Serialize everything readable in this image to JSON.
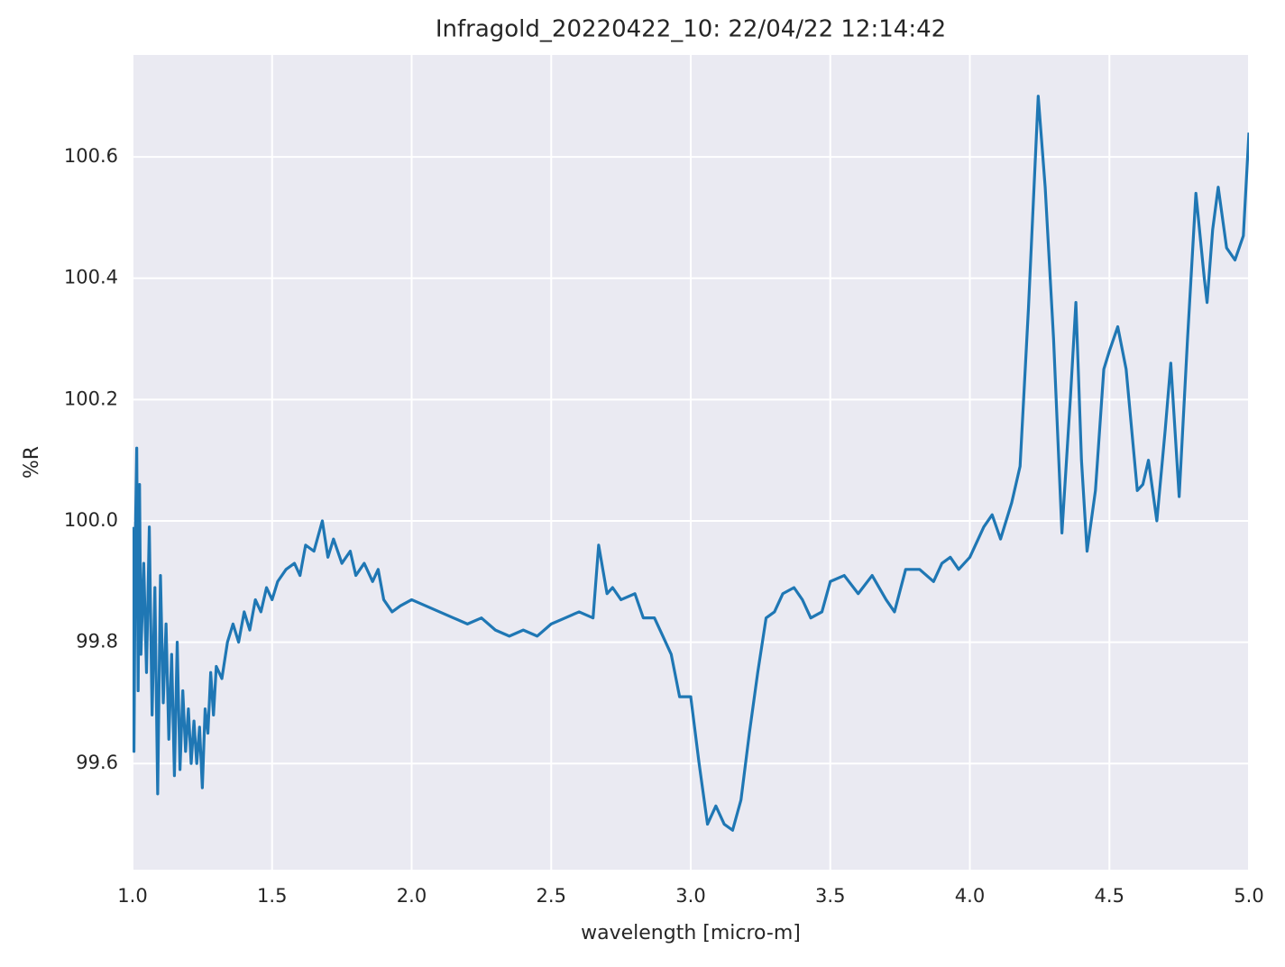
{
  "chart_data": {
    "type": "line",
    "title": "Infragold_20220422_10:  22/04/22 12:14:42",
    "xlabel": "wavelength [micro-m]",
    "ylabel": "%R",
    "color": "#1f77b4",
    "grid": true,
    "xlim": [
      1,
      5
    ],
    "ylim": [
      99.425,
      100.768
    ],
    "xticks": [
      {
        "value": 1,
        "label": "1.0"
      },
      {
        "value": 1.5,
        "label": "1.5"
      },
      {
        "value": 2,
        "label": "2.0"
      },
      {
        "value": 2.5,
        "label": "2.5"
      },
      {
        "value": 3,
        "label": "3.0"
      },
      {
        "value": 3.5,
        "label": "3.5"
      },
      {
        "value": 4,
        "label": "4.0"
      },
      {
        "value": 4.5,
        "label": "4.5"
      },
      {
        "value": 5,
        "label": "5.0"
      }
    ],
    "yticks": [
      99.6,
      99.8,
      {
        "value": 100,
        "label": "100.0"
      },
      100.2,
      100.4,
      100.6
    ],
    "x": [
      1.0,
      1.005,
      1.01,
      1.015,
      1.02,
      1.025,
      1.03,
      1.04,
      1.05,
      1.06,
      1.07,
      1.08,
      1.09,
      1.1,
      1.11,
      1.12,
      1.13,
      1.14,
      1.15,
      1.16,
      1.17,
      1.18,
      1.19,
      1.2,
      1.21,
      1.22,
      1.23,
      1.24,
      1.25,
      1.26,
      1.27,
      1.28,
      1.29,
      1.3,
      1.32,
      1.34,
      1.36,
      1.38,
      1.4,
      1.42,
      1.44,
      1.46,
      1.48,
      1.5,
      1.52,
      1.55,
      1.58,
      1.6,
      1.62,
      1.65,
      1.68,
      1.7,
      1.72,
      1.75,
      1.78,
      1.8,
      1.83,
      1.86,
      1.88,
      1.9,
      1.93,
      1.96,
      2.0,
      2.05,
      2.1,
      2.15,
      2.2,
      2.25,
      2.3,
      2.35,
      2.4,
      2.45,
      2.5,
      2.55,
      2.6,
      2.65,
      2.67,
      2.7,
      2.72,
      2.75,
      2.8,
      2.83,
      2.87,
      2.9,
      2.93,
      2.96,
      3.0,
      3.03,
      3.06,
      3.09,
      3.12,
      3.15,
      3.18,
      3.21,
      3.24,
      3.27,
      3.3,
      3.33,
      3.37,
      3.4,
      3.43,
      3.47,
      3.5,
      3.55,
      3.6,
      3.65,
      3.7,
      3.73,
      3.77,
      3.82,
      3.87,
      3.9,
      3.93,
      3.96,
      4.0,
      4.05,
      4.08,
      4.11,
      4.15,
      4.18,
      4.21,
      4.245,
      4.27,
      4.3,
      4.33,
      4.36,
      4.38,
      4.4,
      4.42,
      4.45,
      4.48,
      4.5,
      4.53,
      4.56,
      4.6,
      4.62,
      4.64,
      4.67,
      4.7,
      4.72,
      4.75,
      4.78,
      4.81,
      4.84,
      4.85,
      4.87,
      4.89,
      4.92,
      4.95,
      4.98,
      5.0
    ],
    "values": [
      99.99,
      99.62,
      99.97,
      100.12,
      99.72,
      100.06,
      99.78,
      99.93,
      99.75,
      99.99,
      99.68,
      99.89,
      99.55,
      99.91,
      99.7,
      99.83,
      99.64,
      99.78,
      99.58,
      99.8,
      99.59,
      99.72,
      99.62,
      99.69,
      99.6,
      99.67,
      99.6,
      99.66,
      99.56,
      99.69,
      99.65,
      99.75,
      99.68,
      99.76,
      99.74,
      99.8,
      99.83,
      99.8,
      99.85,
      99.82,
      99.87,
      99.85,
      99.89,
      99.87,
      99.9,
      99.92,
      99.93,
      99.91,
      99.96,
      99.95,
      100.0,
      99.94,
      99.97,
      99.93,
      99.95,
      99.91,
      99.93,
      99.9,
      99.92,
      99.87,
      99.85,
      99.86,
      99.87,
      99.86,
      99.85,
      99.84,
      99.83,
      99.84,
      99.82,
      99.81,
      99.82,
      99.81,
      99.83,
      99.84,
      99.85,
      99.84,
      99.96,
      99.88,
      99.89,
      99.87,
      99.88,
      99.84,
      99.84,
      99.81,
      99.78,
      99.71,
      99.71,
      99.6,
      99.5,
      99.53,
      99.5,
      99.49,
      99.54,
      99.65,
      99.75,
      99.84,
      99.85,
      99.88,
      99.89,
      99.87,
      99.84,
      99.85,
      99.9,
      99.91,
      99.88,
      99.91,
      99.87,
      99.85,
      99.92,
      99.92,
      99.9,
      99.93,
      99.94,
      99.92,
      99.94,
      99.99,
      100.01,
      99.97,
      100.03,
      100.09,
      100.35,
      100.7,
      100.55,
      100.3,
      99.98,
      100.2,
      100.36,
      100.1,
      99.95,
      100.05,
      100.25,
      100.28,
      100.32,
      100.25,
      100.05,
      100.06,
      100.1,
      100.0,
      100.15,
      100.26,
      100.04,
      100.3,
      100.54,
      100.4,
      100.36,
      100.48,
      100.55,
      100.45,
      100.43,
      100.47,
      100.64
    ]
  }
}
